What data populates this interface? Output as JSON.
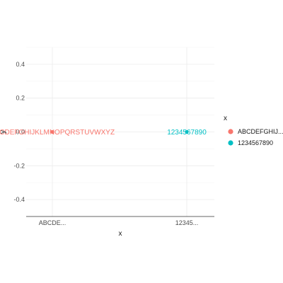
{
  "chart_data": {
    "type": "scatter",
    "categories": [
      "ABCDEFGHIJKLMNOPQRSTUVWXYZ",
      "1234567890"
    ],
    "category_tick_labels": [
      "ABCDE...",
      "12345..."
    ],
    "points": [
      {
        "x": "ABCDEFGHIJKLMNOPQRSTUVWXYZ",
        "y": 0,
        "label": "ABCDEFGHIJKLMNOPQRSTUVWXYZ",
        "color": "#F8766D"
      },
      {
        "x": "1234567890",
        "y": 0,
        "label": "1234567890",
        "color": "#00BFC4"
      }
    ],
    "xlabel": "x",
    "ylabel": "y",
    "ylim": [
      -0.5,
      0.5
    ],
    "yticks": [
      -0.4,
      -0.2,
      0.0,
      0.2,
      0.4
    ],
    "ytick_labels": [
      "-0.4",
      "-0.2",
      "0.0",
      "0.2",
      "0.4"
    ],
    "grid": true,
    "legend": {
      "title": "x",
      "placement": "right",
      "entries": [
        {
          "label": "ABCDEFGHIJ...",
          "color": "#F8766D"
        },
        {
          "label": "1234567890",
          "color": "#00BFC4"
        }
      ]
    }
  }
}
